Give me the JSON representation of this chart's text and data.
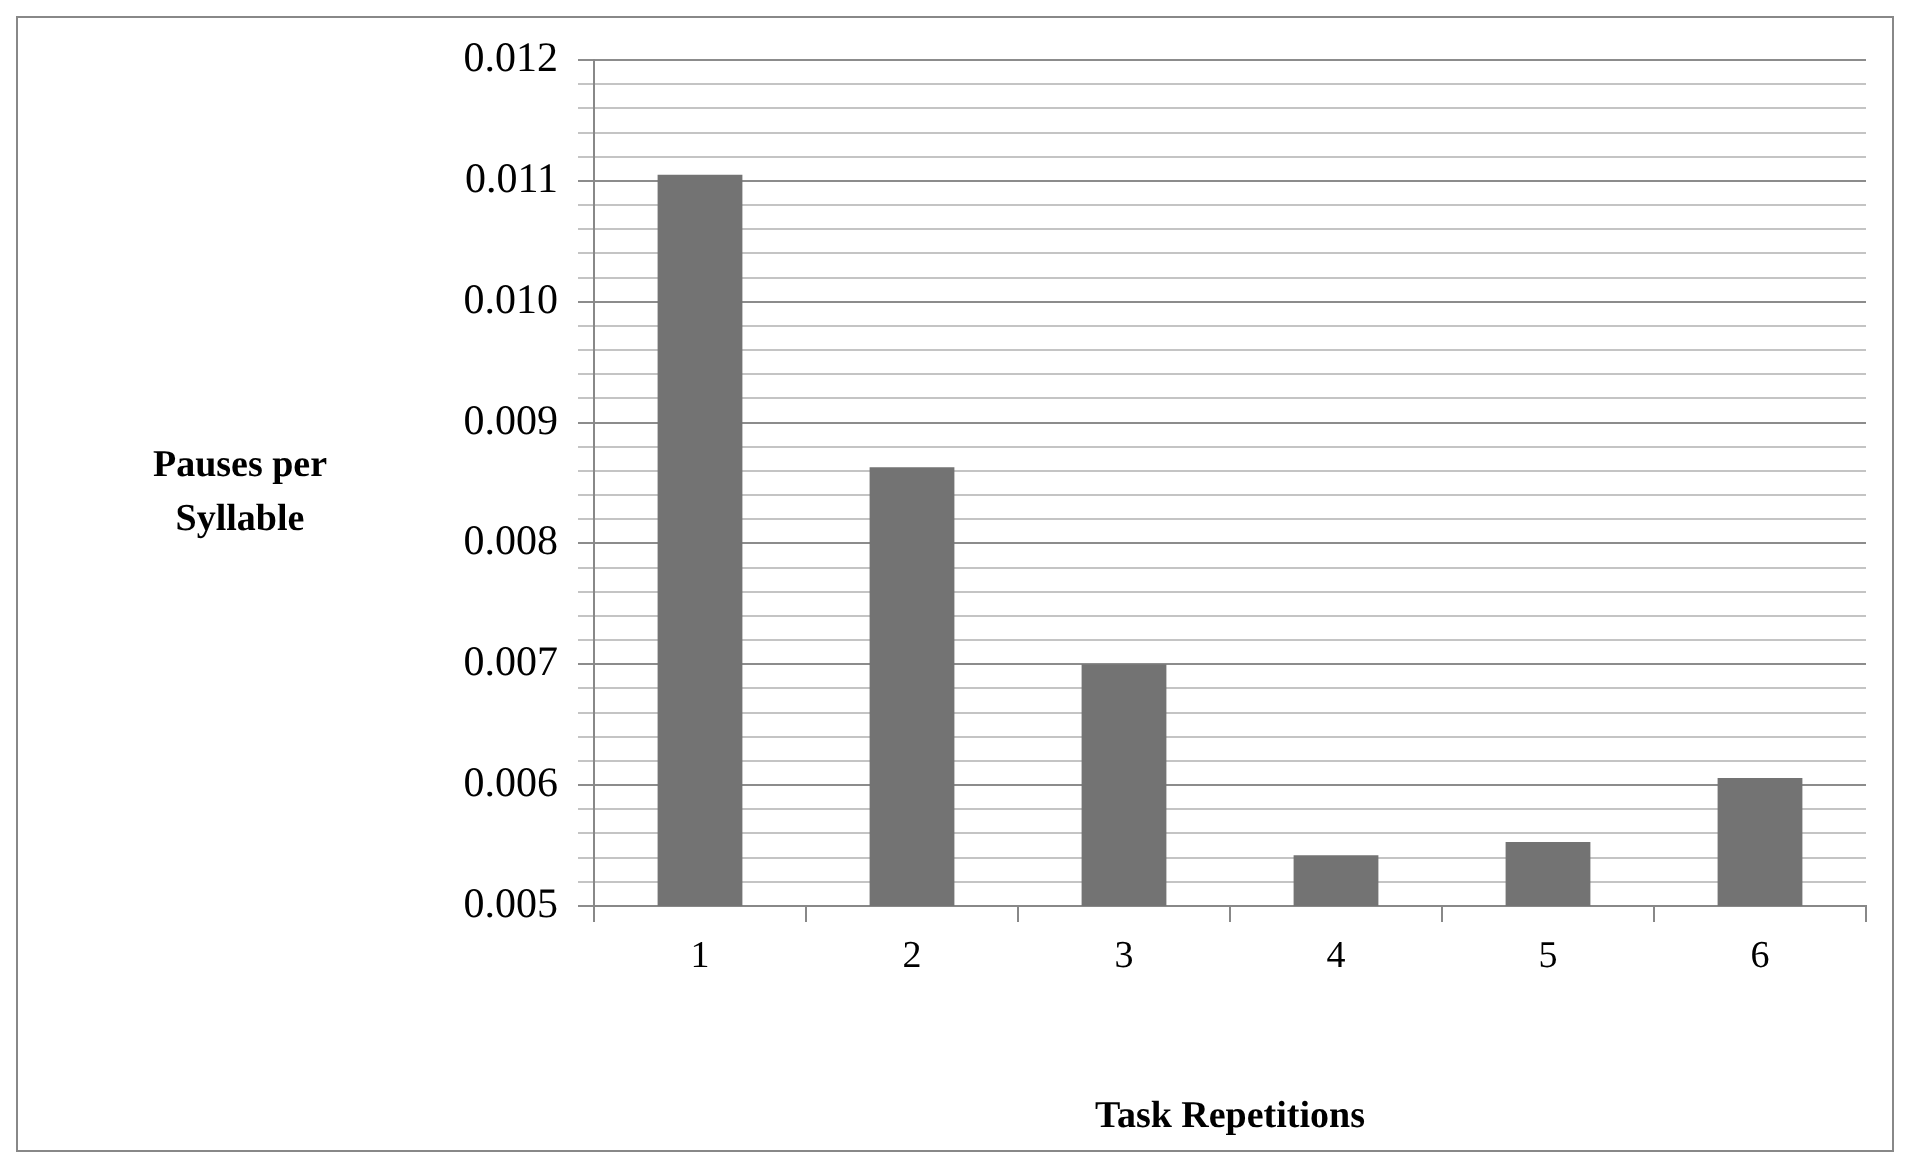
{
  "chart_data": {
    "type": "bar",
    "xlabel": "Task Repetitions",
    "ylabel": "Pauses per Syllable",
    "categories": [
      "1",
      "2",
      "3",
      "4",
      "5",
      "6"
    ],
    "values": [
      0.01105,
      0.00863,
      0.007,
      0.00542,
      0.00553,
      0.00606
    ],
    "color": "#737373",
    "ylim": [
      0.005,
      0.012
    ],
    "yticks": [
      0.005,
      {
        "value": 0.0052,
        "label": null
      },
      {
        "value": 0.0054,
        "label": null
      },
      {
        "value": 0.0056,
        "label": null
      },
      {
        "value": 0.0058,
        "label": null
      },
      0.006,
      {
        "value": 0.0062,
        "label": null
      },
      {
        "value": 0.0064,
        "label": null
      },
      {
        "value": 0.0066,
        "label": null
      },
      {
        "value": 0.0068,
        "label": null
      },
      0.007,
      {
        "value": 0.0072,
        "label": null
      },
      {
        "value": 0.0074,
        "label": null
      },
      {
        "value": 0.0076,
        "label": null
      },
      {
        "value": 0.0078,
        "label": null
      },
      0.008,
      {
        "value": 0.0082,
        "label": null
      },
      {
        "value": 0.0084,
        "label": null
      },
      {
        "value": 0.0086,
        "label": null
      },
      {
        "value": 0.0088,
        "label": null
      },
      0.009,
      {
        "value": 0.0092,
        "label": null
      },
      {
        "value": 0.0094,
        "label": null
      },
      {
        "value": 0.0096,
        "label": null
      },
      {
        "value": 0.0098,
        "label": null
      },
      {
        "value": 0.01,
        "label": "0.010"
      },
      {
        "value": 0.0102,
        "label": null
      },
      {
        "value": 0.0104,
        "label": null
      },
      {
        "value": 0.0106,
        "label": null
      },
      {
        "value": 0.0108,
        "label": null
      },
      0.011,
      {
        "value": 0.0112,
        "label": null
      },
      {
        "value": 0.0114,
        "label": null
      },
      {
        "value": 0.0116,
        "label": null
      },
      {
        "value": 0.0118,
        "label": null
      },
      0.012
    ],
    "grid": true
  }
}
